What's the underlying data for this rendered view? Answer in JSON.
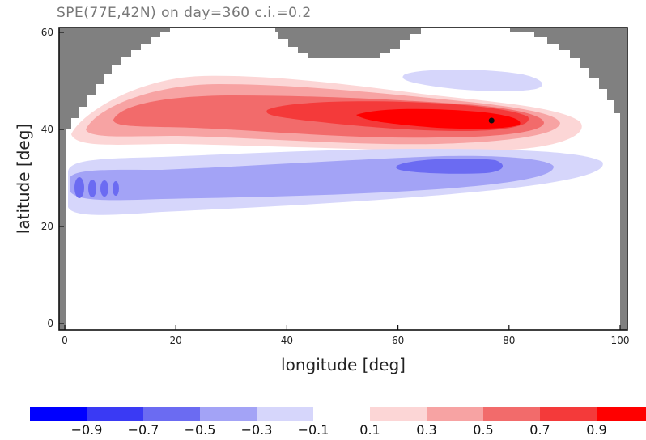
{
  "chart_data": {
    "type": "contour",
    "title": "SPE(77E,42N) on day=360 c.i.=0.2",
    "xlabel": "longitude [deg]",
    "ylabel": "latitude [deg]",
    "xlim": [
      0,
      100
    ],
    "ylim": [
      0,
      60
    ],
    "xticks": [
      "0",
      "20",
      "40",
      "60",
      "80",
      "100"
    ],
    "yticks": [
      "0",
      "20",
      "40",
      "60"
    ],
    "contour_interval": 0.2,
    "marked_point": {
      "lon": 77,
      "lat": 42
    },
    "color_levels": {
      "negative": [
        {
          "label": "−0.9",
          "color": "#0000ff"
        },
        {
          "label": "−0.7",
          "color": "#3a3af4"
        },
        {
          "label": "−0.5",
          "color": "#6b6bf2"
        },
        {
          "label": "−0.3",
          "color": "#a3a3f6"
        },
        {
          "label": "−0.1",
          "color": "#d6d6fb"
        }
      ],
      "positive": [
        {
          "label": "0.1",
          "color": "#fcd6d6"
        },
        {
          "label": "0.3",
          "color": "#f7a3a3"
        },
        {
          "label": "0.5",
          "color": "#f26b6b"
        },
        {
          "label": "0.7",
          "color": "#f43a3a"
        },
        {
          "label": "0.9",
          "color": "#ff0000"
        }
      ]
    },
    "mask_color": "#808080"
  }
}
